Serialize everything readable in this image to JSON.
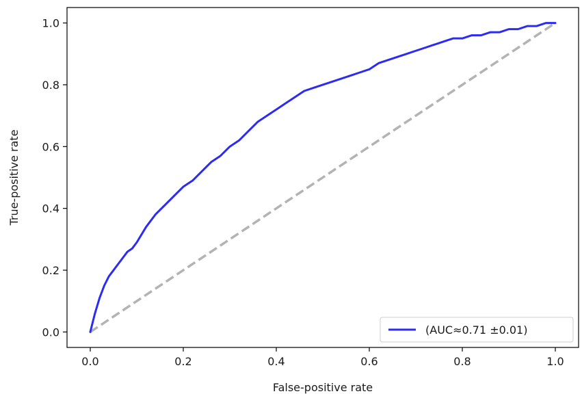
{
  "chart_data": {
    "type": "line",
    "title": "",
    "xlabel": "False-positive rate",
    "ylabel": "True-positive rate",
    "xlim": [
      -0.05,
      1.05
    ],
    "ylim": [
      -0.05,
      1.05
    ],
    "xticks": [
      0.0,
      0.2,
      0.4,
      0.6,
      0.8,
      1.0
    ],
    "yticks": [
      0.0,
      0.2,
      0.4,
      0.6,
      0.8,
      1.0
    ],
    "xtick_labels": [
      "0.0",
      "0.2",
      "0.4",
      "0.6",
      "0.8",
      "1.0"
    ],
    "ytick_labels": [
      "0.0",
      "0.2",
      "0.4",
      "0.6",
      "0.8",
      "1.0"
    ],
    "grid": false,
    "legend_position": "bottom-right",
    "series": [
      {
        "name": "(AUC≈0.71 ±0.01)",
        "color": "#2b2bf5",
        "style": "solid",
        "x": [
          0.0,
          0.01,
          0.02,
          0.03,
          0.04,
          0.05,
          0.06,
          0.07,
          0.08,
          0.09,
          0.1,
          0.12,
          0.14,
          0.16,
          0.18,
          0.2,
          0.22,
          0.24,
          0.26,
          0.28,
          0.3,
          0.32,
          0.34,
          0.36,
          0.38,
          0.4,
          0.42,
          0.44,
          0.46,
          0.48,
          0.5,
          0.52,
          0.54,
          0.56,
          0.58,
          0.6,
          0.62,
          0.64,
          0.66,
          0.68,
          0.7,
          0.72,
          0.74,
          0.76,
          0.78,
          0.8,
          0.82,
          0.84,
          0.86,
          0.88,
          0.9,
          0.92,
          0.94,
          0.96,
          0.98,
          1.0
        ],
        "y": [
          0.0,
          0.06,
          0.11,
          0.15,
          0.18,
          0.2,
          0.22,
          0.24,
          0.26,
          0.27,
          0.29,
          0.34,
          0.38,
          0.41,
          0.44,
          0.47,
          0.49,
          0.52,
          0.55,
          0.57,
          0.6,
          0.62,
          0.65,
          0.68,
          0.7,
          0.72,
          0.74,
          0.76,
          0.78,
          0.79,
          0.8,
          0.81,
          0.82,
          0.83,
          0.84,
          0.85,
          0.87,
          0.88,
          0.89,
          0.9,
          0.91,
          0.92,
          0.93,
          0.94,
          0.95,
          0.95,
          0.96,
          0.96,
          0.97,
          0.97,
          0.98,
          0.98,
          0.99,
          0.99,
          1.0,
          1.0
        ]
      },
      {
        "color": "#b3b3b3",
        "style": "dashed",
        "x": [
          0.0,
          1.0
        ],
        "y": [
          0.0,
          1.0
        ]
      }
    ]
  }
}
